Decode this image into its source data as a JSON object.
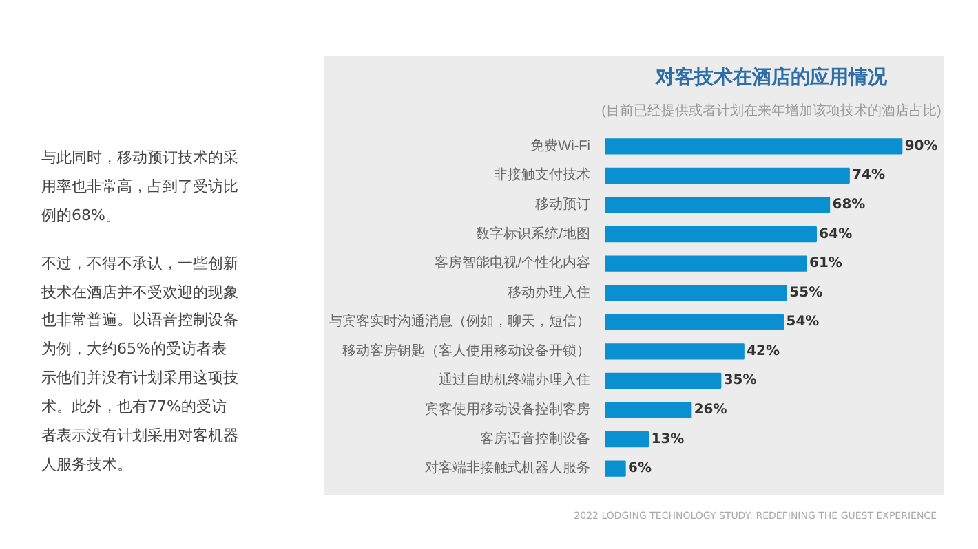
{
  "chart_data": {
    "type": "bar",
    "orientation": "horizontal",
    "title": "对客技术在酒店的应用情况",
    "subtitle": "(目前已经提供或者计划在来年增加该项技术的酒店占比)",
    "categories": [
      "免费Wi-Fi",
      "非接触支付技术",
      "移动预订",
      "数字标识系统/地图",
      "客房智能电视/个性化内容",
      "移动办理入住",
      "与宾客实时沟通消息（例如，聊天，短信）",
      "移动客房钥匙（客人使用移动设备开锁）",
      "通过自助机终端办理入住",
      "宾客使用移动设备控制客房",
      "客房语音控制设备",
      "对客端非接触式机器人服务"
    ],
    "values": [
      90,
      74,
      68,
      64,
      61,
      55,
      54,
      42,
      35,
      26,
      13,
      6
    ],
    "value_labels": [
      "90%",
      "74%",
      "68%",
      "64%",
      "61%",
      "55%",
      "54%",
      "42%",
      "35%",
      "26%",
      "13%",
      "6%"
    ],
    "color": "#0a8fd0",
    "grid": false,
    "tick_labels": "y",
    "annotations": [
      "与此同时，移动预订技术的采用率也非常高，占到了受访比例的68%。",
      "不过，不得不承认，一些创新技术在酒店并不受欢迎的现象也非常普遍。以语音控制设备为例，大约65%的受访者表示他们并没有计划采用这项技术。此外，也有77%的受访者表示没有计划采用对客机器人服务技术。",
      "2022 LODGING TECHNOLOGY STUDY: REDEFINING THE GUEST EXPERIENCE"
    ]
  }
}
